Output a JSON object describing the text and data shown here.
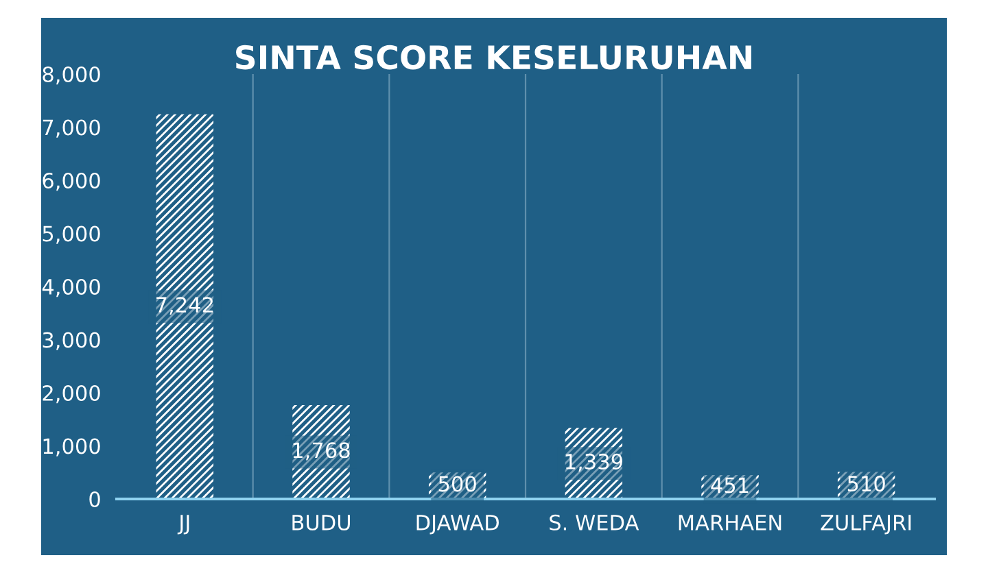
{
  "chart_data": {
    "type": "bar",
    "title": "SINTA SCORE KESELURUHAN",
    "categories": [
      "JJ",
      "BUDU",
      "DJAWAD",
      "S. WEDA",
      "MARHAEN",
      "ZULFAJRI"
    ],
    "values": [
      7242,
      1768,
      500,
      1339,
      451,
      510
    ],
    "color": "#ffffff",
    "ylim": [
      0,
      8000
    ],
    "yticks": [
      {
        "value": 0,
        "label": "0"
      },
      {
        "value": 1000,
        "label": "1,000"
      },
      {
        "value": 2000,
        "label": "2,000"
      },
      {
        "value": 3000,
        "label": "3,000"
      },
      {
        "value": 4000,
        "label": "4,000"
      },
      {
        "value": 5000,
        "label": "5,000"
      },
      {
        "value": 6000,
        "label": "6,000"
      },
      {
        "value": 7000,
        "label": "7,000"
      },
      {
        "value": 8000,
        "label": "8,000"
      }
    ],
    "grid": "x",
    "value_labels": [
      "7,242",
      "1,768",
      "500",
      "1,339",
      "451",
      "510"
    ]
  }
}
